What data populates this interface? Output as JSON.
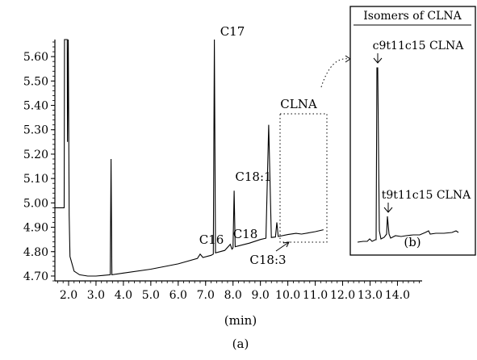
{
  "chart_data": [
    {
      "type": "line",
      "panel_label": "(a)",
      "xlabel": "(min)",
      "ylabel": "",
      "xlim": [
        1.5,
        14.9
      ],
      "ylim": [
        4.68,
        5.67
      ],
      "x_ticks": [
        2.0,
        3.0,
        4.0,
        5.0,
        6.0,
        7.0,
        8.0,
        9.0,
        10.0,
        11.0,
        12.0,
        13.0,
        14.0
      ],
      "x_tick_labels": [
        "2.0",
        "3.0",
        "4.0",
        "5.0",
        "6.0",
        "7.0",
        "8.0",
        "9.0",
        "10.0",
        "11.0",
        "12.0",
        "13.0",
        "14.0"
      ],
      "y_ticks": [
        4.7,
        4.8,
        4.9,
        5.0,
        5.1,
        5.2,
        5.3,
        5.4,
        5.5,
        5.6
      ],
      "y_tick_labels": [
        "4.70",
        "4.80",
        "4.90",
        "5.00",
        "5.10",
        "5.20",
        "5.30",
        "5.40",
        "5.50",
        "5.60"
      ],
      "series": [
        {
          "points": [
            [
              1.5,
              4.98
            ],
            [
              1.84,
              4.98
            ],
            [
              1.85,
              5.67
            ],
            [
              1.95,
              5.67
            ],
            [
              1.96,
              5.25
            ],
            [
              1.99,
              5.67
            ],
            [
              2.02,
              4.95
            ],
            [
              2.05,
              4.78
            ],
            [
              2.2,
              4.72
            ],
            [
              2.4,
              4.705
            ],
            [
              2.7,
              4.7
            ],
            [
              3.0,
              4.7
            ],
            [
              3.3,
              4.703
            ],
            [
              3.52,
              4.705
            ],
            [
              3.55,
              5.18
            ],
            [
              3.58,
              4.705
            ],
            [
              4.0,
              4.712
            ],
            [
              5.0,
              4.728
            ],
            [
              6.0,
              4.75
            ],
            [
              6.7,
              4.772
            ],
            [
              6.8,
              4.79
            ],
            [
              6.9,
              4.776
            ],
            [
              7.2,
              4.785
            ],
            [
              7.28,
              4.79
            ],
            [
              7.32,
              5.67
            ],
            [
              7.36,
              4.795
            ],
            [
              7.7,
              4.805
            ],
            [
              7.9,
              4.83
            ],
            [
              7.96,
              4.81
            ],
            [
              8.0,
              4.815
            ],
            [
              8.04,
              5.05
            ],
            [
              8.08,
              4.82
            ],
            [
              8.6,
              4.835
            ],
            [
              9.0,
              4.85
            ],
            [
              9.2,
              4.855
            ],
            [
              9.3,
              5.32
            ],
            [
              9.4,
              4.858
            ],
            [
              9.55,
              4.86
            ],
            [
              9.6,
              4.92
            ],
            [
              9.65,
              4.862
            ],
            [
              10.0,
              4.87
            ],
            [
              10.3,
              4.875
            ],
            [
              10.5,
              4.872
            ],
            [
              11.0,
              4.882
            ],
            [
              11.3,
              4.89
            ]
          ]
        }
      ],
      "peak_labels": [
        "C16",
        "C17",
        "C18",
        "C18:1",
        "C18:3",
        "CLNA"
      ]
    },
    {
      "type": "line",
      "panel_label": "(b)",
      "title": "Isomers of CLNA",
      "annotations": [
        "c9t11c15 CLNA",
        "t9t11c15 CLNA"
      ]
    }
  ]
}
